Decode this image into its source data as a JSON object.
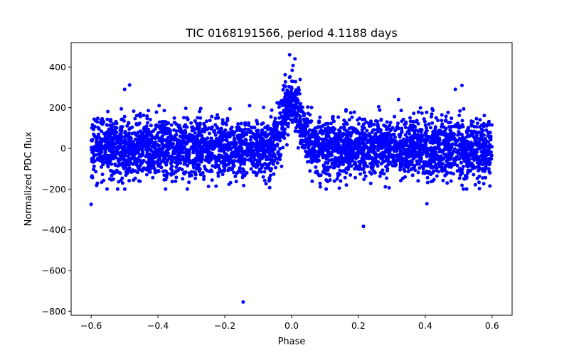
{
  "chart_data": {
    "type": "scatter",
    "title": "TIC 0168191566, period 4.1188 days",
    "xlabel": "Phase",
    "ylabel": "Normalized PDC flux",
    "xlim": [
      -0.66,
      0.66
    ],
    "ylim": [
      -820,
      520
    ],
    "xticks": [
      -0.6,
      -0.4,
      -0.2,
      0.0,
      0.2,
      0.4,
      0.6
    ],
    "xtick_labels": [
      "−0.6",
      "−0.4",
      "−0.2",
      "0.0",
      "0.2",
      "0.4",
      "0.6"
    ],
    "yticks": [
      -800,
      -600,
      -400,
      -200,
      0,
      200,
      400
    ],
    "ytick_labels": [
      "−800",
      "−600",
      "−400",
      "−200",
      "0",
      "200",
      "400"
    ],
    "grid": false,
    "marker_color": "#0000ff",
    "phase_range": [
      -0.6,
      0.6
    ],
    "baseline_noise_sd": 70,
    "baseline_extent": [
      -200,
      210
    ],
    "peak": {
      "phase": 0.0,
      "amplitude": 230,
      "width": 0.025,
      "max": 460
    },
    "outliers": [
      {
        "x": -0.145,
        "y": -755
      },
      {
        "x": 0.215,
        "y": -383
      },
      {
        "x": -0.6,
        "y": -275
      },
      {
        "x": 0.405,
        "y": -272
      },
      {
        "x": -0.485,
        "y": 312
      },
      {
        "x": 0.51,
        "y": 310
      },
      {
        "x": -0.5,
        "y": 290
      },
      {
        "x": 0.49,
        "y": 290
      },
      {
        "x": 0.32,
        "y": 240
      },
      {
        "x": -0.006,
        "y": 460
      },
      {
        "x": 0.01,
        "y": 440
      }
    ]
  }
}
